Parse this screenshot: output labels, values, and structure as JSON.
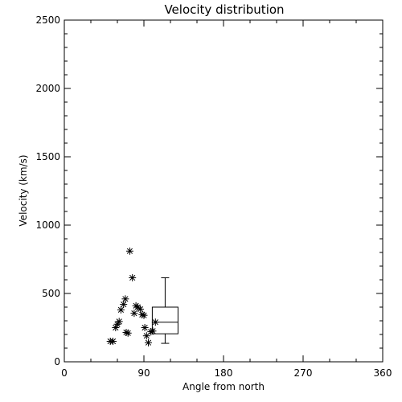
{
  "chart_data": {
    "type": "scatter",
    "title": "Velocity distribution",
    "xlabel": "Angle from north",
    "ylabel": "Velocity (km/s)",
    "xlim": [
      0,
      360
    ],
    "ylim": [
      0,
      2500
    ],
    "xticks": [
      0,
      90,
      180,
      270,
      360
    ],
    "yticks": [
      0,
      500,
      1000,
      1500,
      2000,
      2500
    ],
    "x_tick_labels": [
      "0",
      "90",
      "180",
      "270",
      "360"
    ],
    "y_tick_labels": [
      "0",
      "500",
      "1000",
      "1500",
      "2000",
      "2500"
    ],
    "grid": false,
    "points": [
      {
        "x": 52,
        "y": 150
      },
      {
        "x": 55,
        "y": 150
      },
      {
        "x": 58,
        "y": 250
      },
      {
        "x": 60,
        "y": 275
      },
      {
        "x": 62,
        "y": 295
      },
      {
        "x": 64,
        "y": 380
      },
      {
        "x": 67,
        "y": 420
      },
      {
        "x": 69,
        "y": 460
      },
      {
        "x": 70,
        "y": 215
      },
      {
        "x": 72,
        "y": 210
      },
      {
        "x": 74,
        "y": 810
      },
      {
        "x": 77,
        "y": 615
      },
      {
        "x": 79,
        "y": 355
      },
      {
        "x": 81,
        "y": 410
      },
      {
        "x": 83,
        "y": 400
      },
      {
        "x": 86,
        "y": 385
      },
      {
        "x": 88,
        "y": 345
      },
      {
        "x": 90,
        "y": 340
      },
      {
        "x": 91,
        "y": 250
      },
      {
        "x": 93,
        "y": 190
      },
      {
        "x": 95,
        "y": 140
      },
      {
        "x": 98,
        "y": 220
      },
      {
        "x": 100,
        "y": 225
      },
      {
        "x": 103,
        "y": 290
      }
    ],
    "boxplot": {
      "x_center": 114,
      "whisker_low": 135,
      "q1": 205,
      "median": 290,
      "q3": 400,
      "whisker_high": 615
    }
  }
}
